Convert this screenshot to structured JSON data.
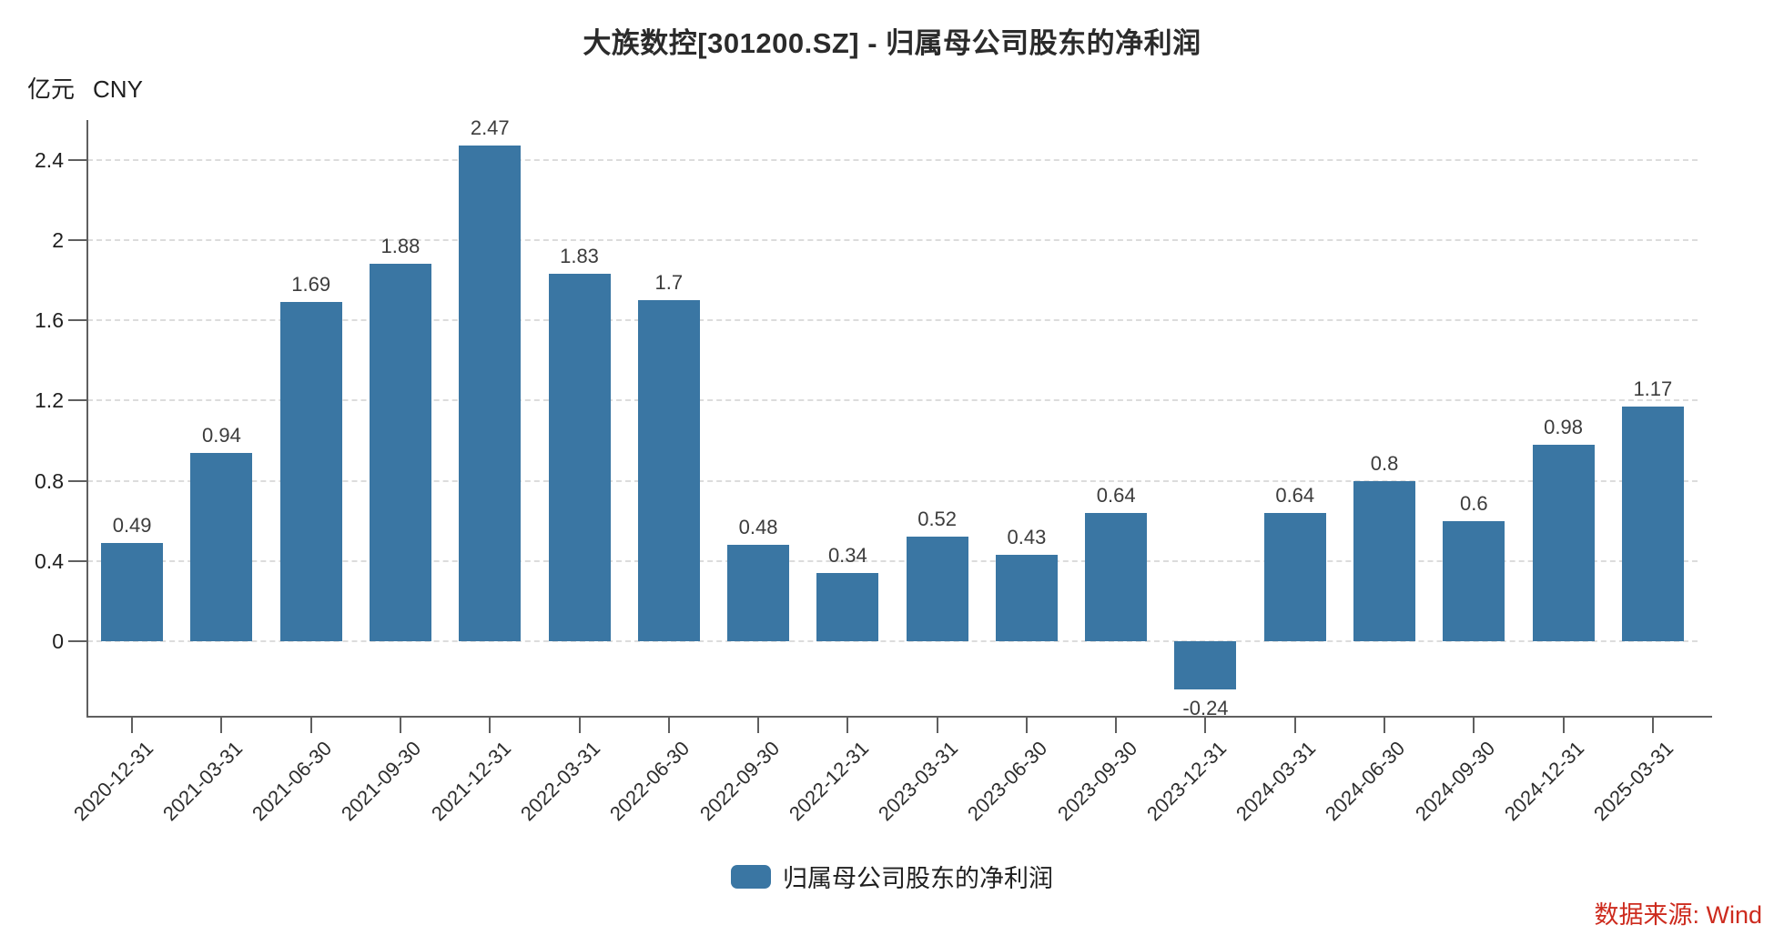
{
  "title": "大族数控[301200.SZ] - 归属母公司股东的净利润",
  "y_axis": {
    "unit": "亿元",
    "currency": "CNY"
  },
  "legend": {
    "label": "归属母公司股东的净利润"
  },
  "source": {
    "text": "数据来源: Wind"
  },
  "colors": {
    "bar": "#3a76a3",
    "grid": "#dcdcdc",
    "axis": "#5f5f5f",
    "title_text": "#2b2b2b",
    "tick_text": "#1f1f1f",
    "value_text": "#3c3c3c",
    "source_red": "#cd2b1e",
    "background": "#ffffff"
  },
  "chart_data": {
    "type": "bar",
    "title": "大族数控[301200.SZ] - 归属母公司股东的净利润",
    "series_name": "归属母公司股东的净利润",
    "ylabel": "亿元 CNY",
    "xlabel": "",
    "categories": [
      "2020-12-31",
      "2021-03-31",
      "2021-06-30",
      "2021-09-30",
      "2021-12-31",
      "2022-03-31",
      "2022-06-30",
      "2022-09-30",
      "2022-12-31",
      "2023-03-31",
      "2023-06-30",
      "2023-09-30",
      "2023-12-31",
      "2024-03-31",
      "2024-06-30",
      "2024-09-30",
      "2024-12-31",
      "2025-03-31"
    ],
    "values": [
      0.49,
      0.94,
      1.69,
      1.88,
      2.47,
      1.83,
      1.7,
      0.48,
      0.34,
      0.52,
      0.43,
      0.64,
      -0.24,
      0.64,
      0.8,
      0.6,
      0.98,
      1.17
    ],
    "yticks": [
      0,
      0.4,
      0.8,
      1.2,
      1.6,
      2,
      2.4
    ],
    "ylim": [
      -0.38,
      2.6
    ],
    "grid": "horizontal-dashed",
    "legend_position": "bottom",
    "value_labels": "shown at bar ends"
  }
}
